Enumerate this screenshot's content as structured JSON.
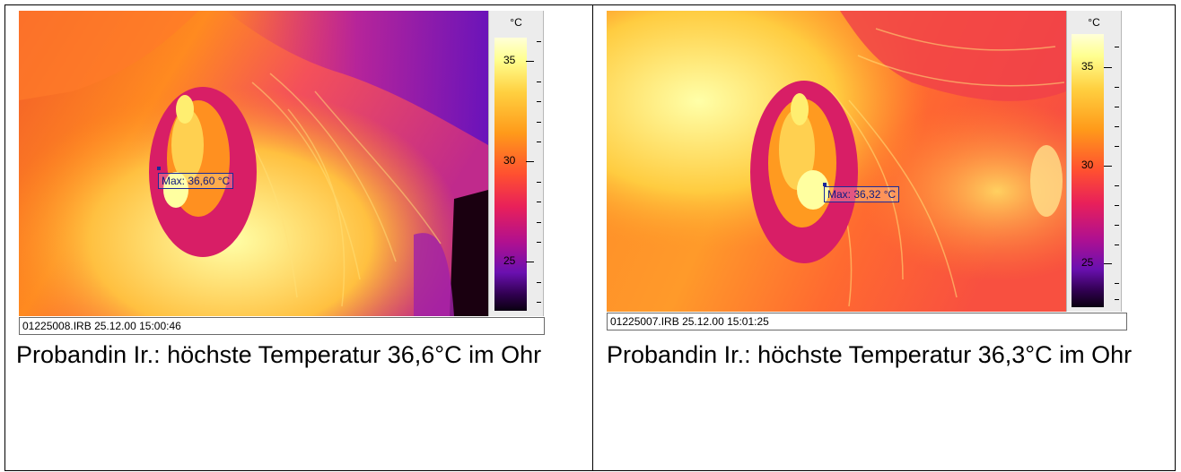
{
  "panels": [
    {
      "scale_unit": "°C",
      "scale_labels": [
        "35",
        "30",
        "25"
      ],
      "max_label": "Max: 36,60 °C",
      "status": "01225008.IRB  25.12.00  15:00:46",
      "caption": "Probandin Ir.: höchste Temperatur 36,6°C im Ohr"
    },
    {
      "scale_unit": "°C",
      "scale_labels": [
        "35",
        "30",
        "25"
      ],
      "max_label": "Max: 36,32 °C",
      "status": "01225007.IRB  25.12.00  15:01:25",
      "caption": "Probandin Ir.: höchste Temperatur 36,3°C im Ohr"
    }
  ],
  "colors": {
    "palette_hot": "#ffffa0",
    "palette_warm": "#ff9a1a",
    "palette_mid": "#e8205a",
    "palette_cool": "#8a10b8",
    "palette_cold": "#0a0010",
    "label_border": "#1a2a9a"
  }
}
